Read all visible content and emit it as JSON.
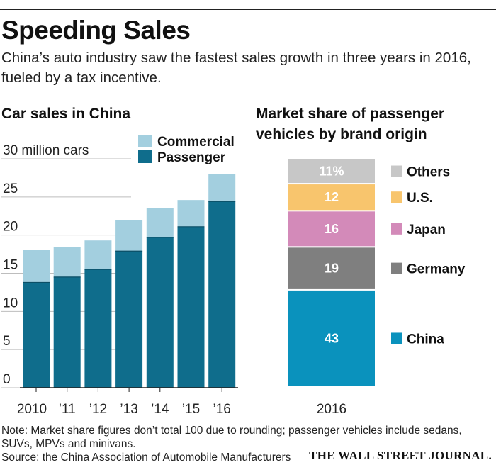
{
  "header": {
    "title": "Speeding Sales",
    "subtitle": "China’s auto industry saw the fastest sales growth in three years in 2016, fueled by a tax incentive."
  },
  "footer": {
    "note": "Note: Market share figures don’t total 100 due to rounding; passenger vehicles include sedans, SUVs, MPVs and minivans.",
    "source": "Source: the China Association of Automobile Manufacturers",
    "brand": "THE WALL STREET JOURNAL."
  },
  "colors": {
    "passenger": "#0f6d8c",
    "commercial": "#a3cfdf",
    "china": "#0a92bd",
    "germany": "#7f7f7f",
    "japan": "#d38ab9",
    "us": "#f8c56d",
    "others": "#c7c7c7"
  },
  "chart_data": [
    {
      "type": "bar",
      "stacked": true,
      "title": "Car sales in China",
      "categories": [
        "2010",
        "’11",
        "’12",
        "’13",
        "’14",
        "’15",
        "’16"
      ],
      "series": [
        {
          "name": "Passenger",
          "values": [
            13.8,
            14.5,
            15.5,
            17.9,
            19.7,
            21.1,
            24.4
          ]
        },
        {
          "name": "Commercial",
          "values": [
            4.3,
            3.9,
            3.8,
            4.1,
            3.8,
            3.5,
            3.6
          ]
        }
      ],
      "y_ticks": [
        "30 million cars",
        "25",
        "20",
        "15",
        "10",
        "5",
        "0"
      ],
      "ylim": [
        0,
        30
      ],
      "legend_placement": "top-right",
      "grid": "horizontal"
    },
    {
      "type": "bar",
      "stacked": true,
      "title": "Market share of passenger vehicles by brand origin",
      "categories": [
        "2016"
      ],
      "series": [
        {
          "name": "China",
          "label": "43",
          "values": [
            43
          ]
        },
        {
          "name": "Germany",
          "label": "19",
          "values": [
            19
          ]
        },
        {
          "name": "Japan",
          "label": "16",
          "values": [
            16
          ]
        },
        {
          "name": "U.S.",
          "label": "12",
          "values": [
            12
          ]
        },
        {
          "name": "Others",
          "label": "11%",
          "values": [
            11
          ]
        }
      ],
      "legend_placement": "right"
    }
  ]
}
